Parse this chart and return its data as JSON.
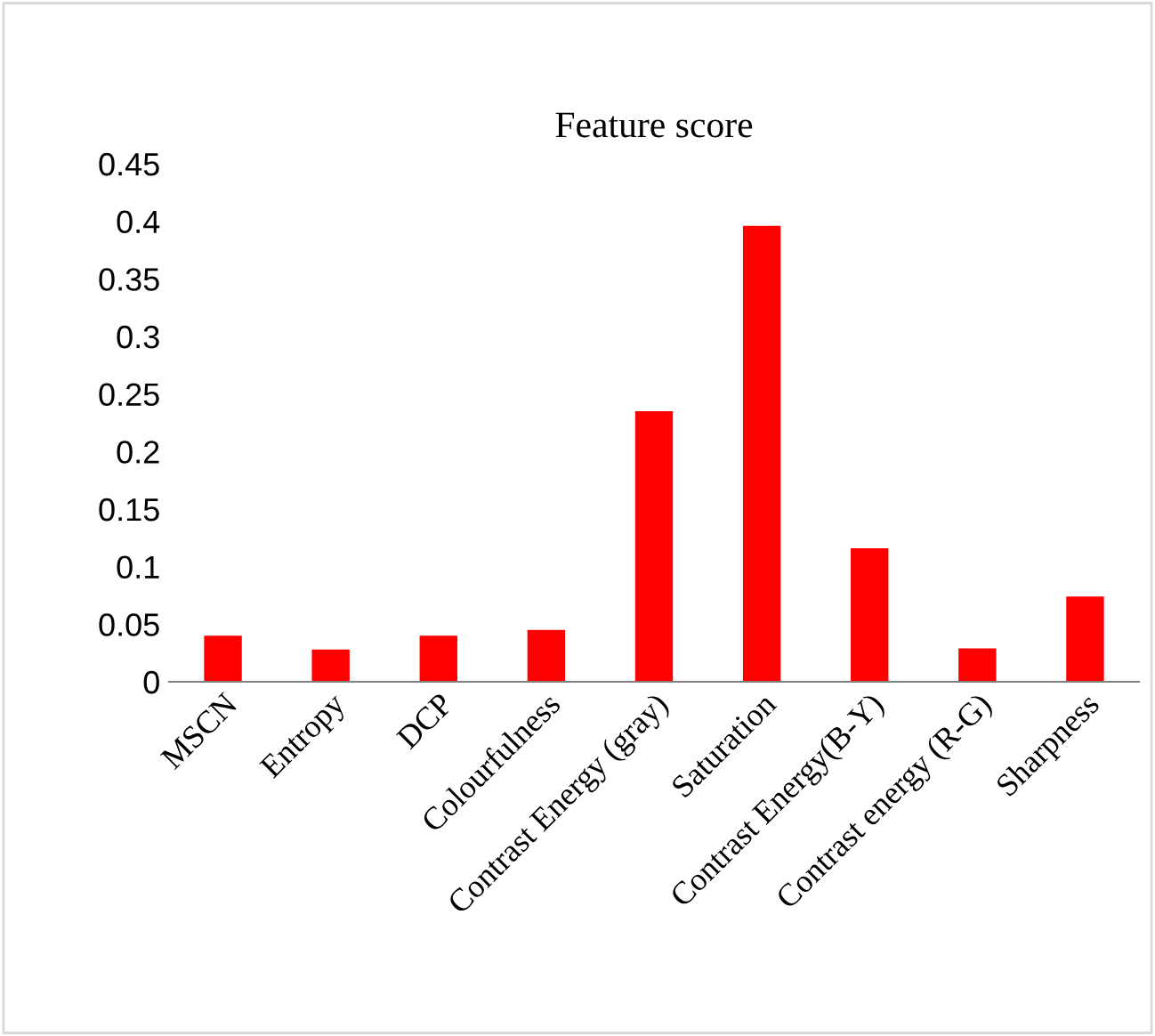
{
  "chart_data": {
    "type": "bar",
    "title": "Feature score",
    "categories": [
      "MSCN",
      "Entropy",
      "DCP",
      "Colourfulness",
      "Contrast Energy (gray)",
      "Saturation",
      "Contrast Energy(B-Y)",
      "Contrast energy (R-G)",
      "Sharpness"
    ],
    "values": [
      0.04,
      0.028,
      0.04,
      0.045,
      0.235,
      0.396,
      0.116,
      0.029,
      0.074
    ],
    "color": "#ff0000",
    "ylim": [
      0,
      0.45
    ],
    "yticks": [
      {
        "value": 0,
        "label": "0"
      },
      0.05,
      0.1,
      0.15,
      0.2,
      0.25,
      0.3,
      0.35,
      0.4,
      0.45
    ],
    "grid": false,
    "legend": false
  }
}
